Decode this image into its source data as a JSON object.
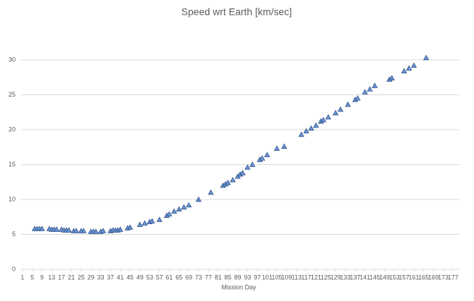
{
  "chart_data": {
    "type": "scatter",
    "title": "Speed wrt Earth [km/sec]",
    "x_label": "Mission Day",
    "series": [
      {
        "name": "Speed",
        "color": "#6b95d1",
        "marker": "triangle",
        "x": [
          6,
          7,
          8,
          9,
          12,
          13,
          14,
          15,
          17,
          18,
          19,
          20,
          22,
          23,
          25,
          26,
          29,
          30,
          31,
          33,
          34,
          37,
          38,
          39,
          40,
          41,
          44,
          45,
          49,
          51,
          53,
          54,
          57,
          60,
          61,
          63,
          65,
          67,
          69,
          73,
          78,
          83,
          84,
          85,
          87,
          89,
          90,
          91,
          93,
          95,
          98,
          99,
          101,
          105,
          108,
          115,
          117,
          119,
          121,
          123,
          124,
          126,
          129,
          131,
          134,
          137,
          138,
          141,
          143,
          145,
          151,
          152,
          157,
          159,
          161,
          166
        ],
        "values": [
          5.8,
          5.8,
          5.8,
          5.8,
          5.8,
          5.7,
          5.7,
          5.7,
          5.7,
          5.6,
          5.6,
          5.6,
          5.5,
          5.5,
          5.5,
          5.5,
          5.4,
          5.4,
          5.4,
          5.4,
          5.5,
          5.5,
          5.6,
          5.6,
          5.6,
          5.7,
          5.9,
          6.0,
          6.4,
          6.6,
          6.8,
          6.9,
          7.1,
          7.7,
          7.9,
          8.3,
          8.6,
          8.9,
          9.2,
          10.0,
          11.0,
          12.0,
          12.2,
          12.4,
          12.8,
          13.3,
          13.6,
          13.8,
          14.6,
          15.0,
          15.7,
          15.9,
          16.4,
          17.3,
          17.6,
          19.3,
          19.8,
          20.2,
          20.6,
          21.2,
          21.4,
          21.8,
          22.4,
          22.9,
          23.6,
          24.3,
          24.5,
          25.4,
          25.8,
          26.3,
          27.2,
          27.4,
          28.4,
          28.8,
          29.2,
          30.3
        ]
      }
    ],
    "xlim": [
      0.5,
      179.5
    ],
    "xticks": [
      1,
      5,
      9,
      13,
      17,
      21,
      25,
      29,
      33,
      37,
      41,
      45,
      49,
      53,
      57,
      61,
      65,
      69,
      73,
      77,
      81,
      85,
      89,
      93,
      97,
      101,
      105,
      109,
      113,
      117,
      121,
      125,
      129,
      133,
      137,
      141,
      145,
      149,
      153,
      157,
      161,
      165,
      169,
      173,
      177
    ],
    "ylim": [
      0,
      30
    ],
    "yticks": [
      0,
      5,
      10,
      15,
      20,
      25,
      30
    ],
    "grid": true
  }
}
